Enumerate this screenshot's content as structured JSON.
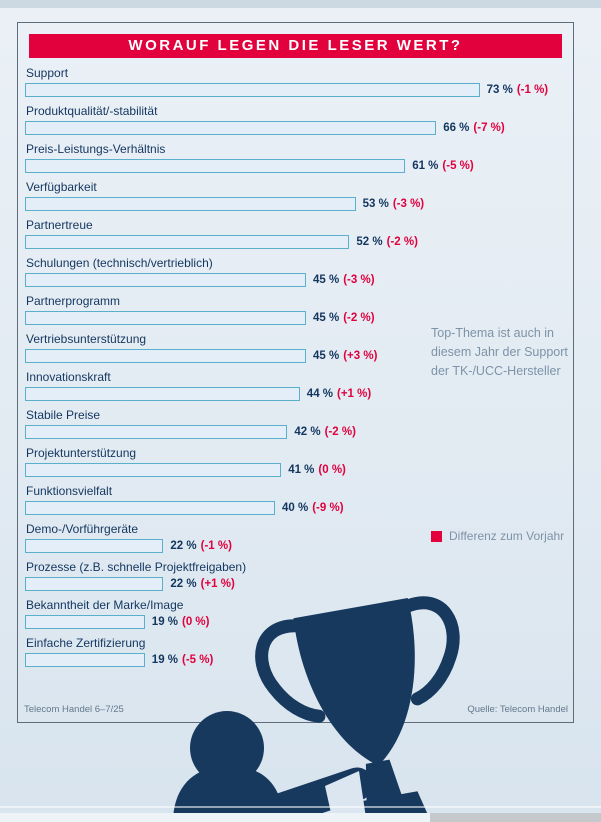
{
  "page": {
    "source_left": "Telecom Handel 6–7/25",
    "source_right": "Quelle: Telecom Handel"
  },
  "chart_data": {
    "type": "bar",
    "orientation": "horizontal",
    "title": "WORAUF LEGEN DIE LESER WERT?",
    "xlabel": "",
    "ylabel": "",
    "unit": "%",
    "xlim": [
      0,
      100
    ],
    "grid": false,
    "categories": [
      "Support",
      "Produktqualität/-stabilität",
      "Preis-Leistungs-Verhältnis",
      "Verfügbarkeit",
      "Partnertreue",
      "Schulungen (technisch/vertrieblich)",
      "Partnerprogramm",
      "Vertriebsunterstützung",
      "Innovationskraft",
      "Stabile Preise",
      "Projektunterstützung",
      "Funktionsvielfalt",
      "Demo-/Vorführgeräte",
      "Prozesse (z.B. schnelle Projektfreigaben)",
      "Bekanntheit der Marke/Image",
      "Einfache Zertifizierung"
    ],
    "values": [
      73,
      66,
      61,
      53,
      52,
      45,
      45,
      45,
      44,
      42,
      41,
      40,
      22,
      22,
      19,
      19
    ],
    "value_labels": [
      "73 %",
      "66 %",
      "61 %",
      "53 %",
      "52 %",
      "45 %",
      "45 %",
      "45 %",
      "44 %",
      "42 %",
      "41 %",
      "40 %",
      "22 %",
      "22 %",
      "19 %",
      "19 %"
    ],
    "diffs_vs_prev_year": [
      -1,
      -7,
      -5,
      -3,
      -2,
      -3,
      -2,
      3,
      1,
      -2,
      0,
      -9,
      -1,
      1,
      0,
      -5
    ],
    "diff_labels": [
      "(-1 %)",
      "(-7 %)",
      "(-5 %)",
      "(-3 %)",
      "(-2 %)",
      "(-3 %)",
      "(-2 %)",
      "(+3 %)",
      "(+1 %)",
      "(-2 %)",
      "(0 %)",
      "(-9 %)",
      "(-1 %)",
      "(+1 %)",
      "(0 %)",
      "(-5 %)"
    ],
    "legend": {
      "label": "Differenz zum Vorjahr",
      "position": "right",
      "swatch_color": "#e2003d"
    },
    "annotation": "Top-Thema ist auch in\ndiesem Jahr der Support\nder TK-/UCC-Hersteller",
    "colors": {
      "banner": "#e2003d",
      "banner_text": "#ffffff",
      "bar_fill": "#e3eef8",
      "bar_border": "#5ab0cb",
      "value_text": "#13365f",
      "diff_text": "#e2003d",
      "label_text": "#13365f",
      "annotation_text": "#7d93a9",
      "silhouette": "#17395e"
    }
  }
}
